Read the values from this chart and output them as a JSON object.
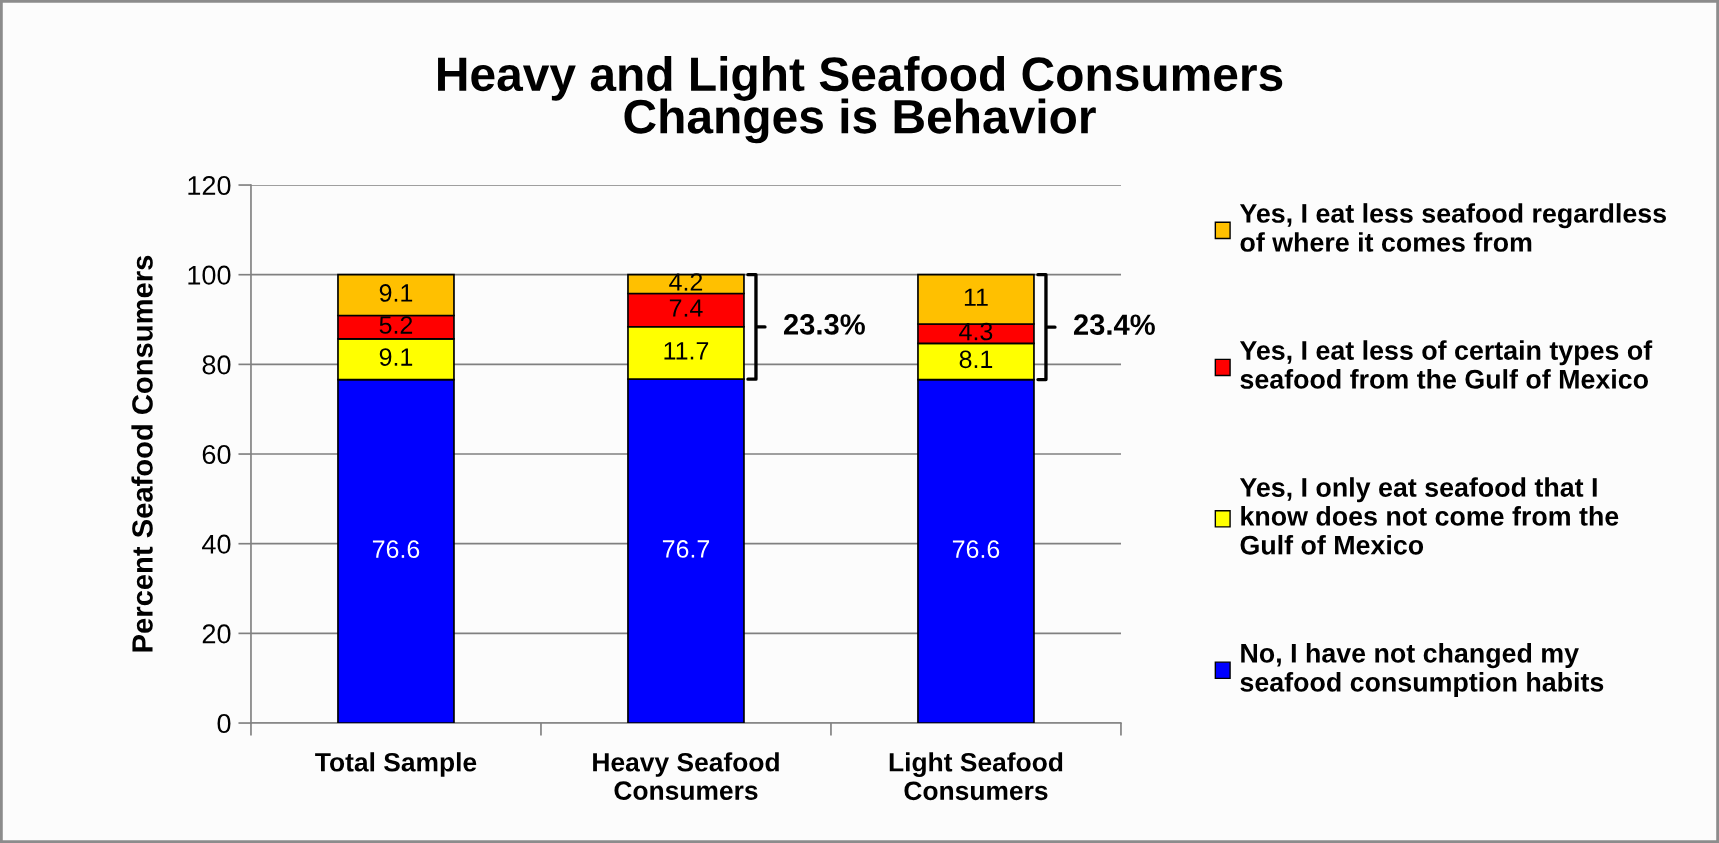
{
  "chart_data": {
    "type": "bar",
    "stacked": true,
    "title": "Heavy and Light Seafood Consumers\nChanges is Behavior",
    "ylabel": "Percent Seafood Consumers",
    "categories": [
      "Total Sample",
      "Heavy Seafood Consumers",
      "Light Seafood Consumers"
    ],
    "series": [
      {
        "name": "No, I have not changed my seafood consumption habits",
        "color": "#0000ff",
        "values": [
          76.6,
          76.7,
          76.6
        ]
      },
      {
        "name": "Yes, I only eat seafood that I know does not come from the Gulf of Mexico",
        "color": "#ffff00",
        "values": [
          9.1,
          11.7,
          8.1
        ]
      },
      {
        "name": "Yes, I eat less of certain types of seafood from the Gulf of Mexico",
        "color": "#ff0000",
        "values": [
          5.2,
          7.4,
          4.3
        ]
      },
      {
        "name": "Yes, I eat less seafood regardless of where it comes from",
        "color": "#ffc000",
        "values": [
          9.1,
          4.2,
          11
        ]
      }
    ],
    "ylim": [
      0,
      120
    ],
    "yticks": [
      0,
      20,
      40,
      60,
      80,
      100,
      120
    ],
    "grid": "y",
    "legend": "right",
    "data_labels": true,
    "annotations": [
      "23.3%",
      "23.4%"
    ]
  }
}
